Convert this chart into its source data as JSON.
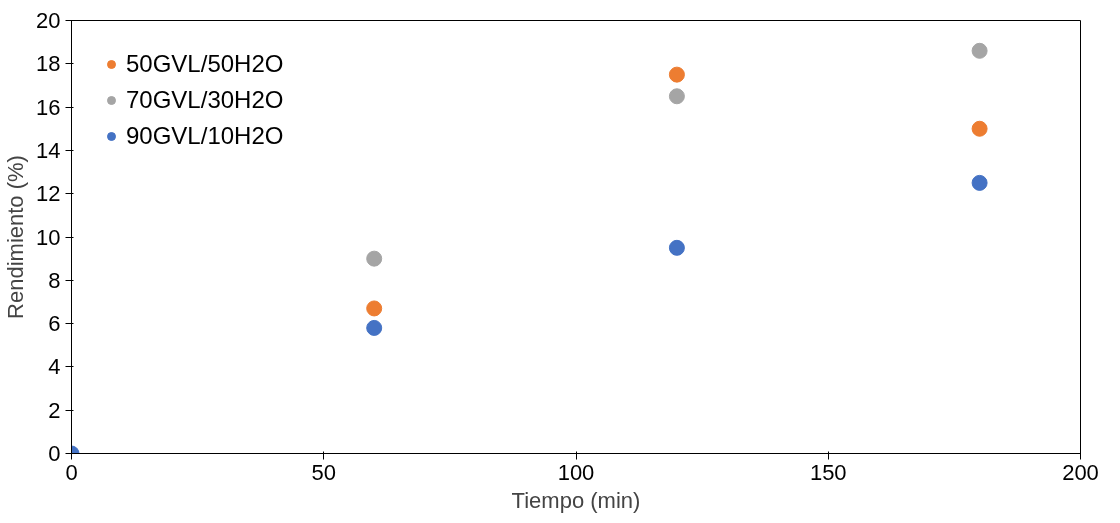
{
  "chart_data": {
    "type": "scatter",
    "xlabel": "Tiempo (min)",
    "ylabel": "Rendimiento (%)",
    "x": [
      0,
      60,
      120,
      180
    ],
    "series": [
      {
        "name": "50GVL/50H2O",
        "color": "#ed7d31",
        "values": [
          null,
          6.7,
          17.5,
          15.0
        ]
      },
      {
        "name": "70GVL/30H2O",
        "color": "#a5a5a5",
        "values": [
          null,
          9.0,
          16.5,
          18.6
        ]
      },
      {
        "name": "90GVL/10H2O",
        "color": "#4472c4",
        "values": [
          0,
          5.8,
          9.5,
          12.5
        ]
      }
    ],
    "xlim": [
      0,
      200
    ],
    "xticks": [
      0,
      50,
      100,
      150,
      200
    ],
    "ylim": [
      0,
      20
    ],
    "yticks": [
      0,
      2,
      4,
      6,
      8,
      10,
      12,
      14,
      16,
      18,
      20
    ],
    "grid": false,
    "legend": "top left",
    "marker": "circle"
  }
}
